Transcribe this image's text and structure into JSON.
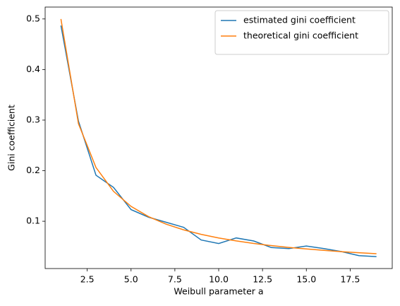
{
  "chart_data": {
    "type": "line",
    "x": [
      1,
      2,
      3,
      4,
      5,
      6,
      7,
      8,
      9,
      10,
      11,
      12,
      13,
      14,
      15,
      16,
      17,
      18,
      19
    ],
    "series": [
      {
        "name": "estimated gini coefficient",
        "color": "#1f77b4",
        "values": [
          0.487,
          0.298,
          0.191,
          0.167,
          0.123,
          0.108,
          0.098,
          0.088,
          0.063,
          0.056,
          0.067,
          0.061,
          0.048,
          0.046,
          0.051,
          0.046,
          0.04,
          0.032,
          0.03
        ]
      },
      {
        "name": "theoretical gini coefficient",
        "color": "#ff7f0e",
        "values": [
          0.5,
          0.2929,
          0.2063,
          0.1591,
          0.1294,
          0.1091,
          0.0943,
          0.083,
          0.0741,
          0.067,
          0.0611,
          0.0561,
          0.0519,
          0.0483,
          0.0452,
          0.0424,
          0.0399,
          0.0378,
          0.0358
        ]
      }
    ],
    "xlabel": "Weibull parameter a",
    "ylabel": "Gini coefficient",
    "xlim": [
      0.1,
      19.9
    ],
    "ylim": [
      0.0065,
      0.5235
    ],
    "xticks": [
      {
        "value": 2.5,
        "label": "2.5"
      },
      {
        "value": 5,
        "label": "5.0"
      },
      {
        "value": 7.5,
        "label": "7.5"
      },
      {
        "value": 10,
        "label": "10.0"
      },
      {
        "value": 12.5,
        "label": "12.5"
      },
      {
        "value": 15,
        "label": "15.0"
      },
      {
        "value": 17.5,
        "label": "17.5"
      }
    ],
    "yticks": [
      0.1,
      0.2,
      0.3,
      0.4,
      0.5
    ],
    "legend": "upper right"
  }
}
